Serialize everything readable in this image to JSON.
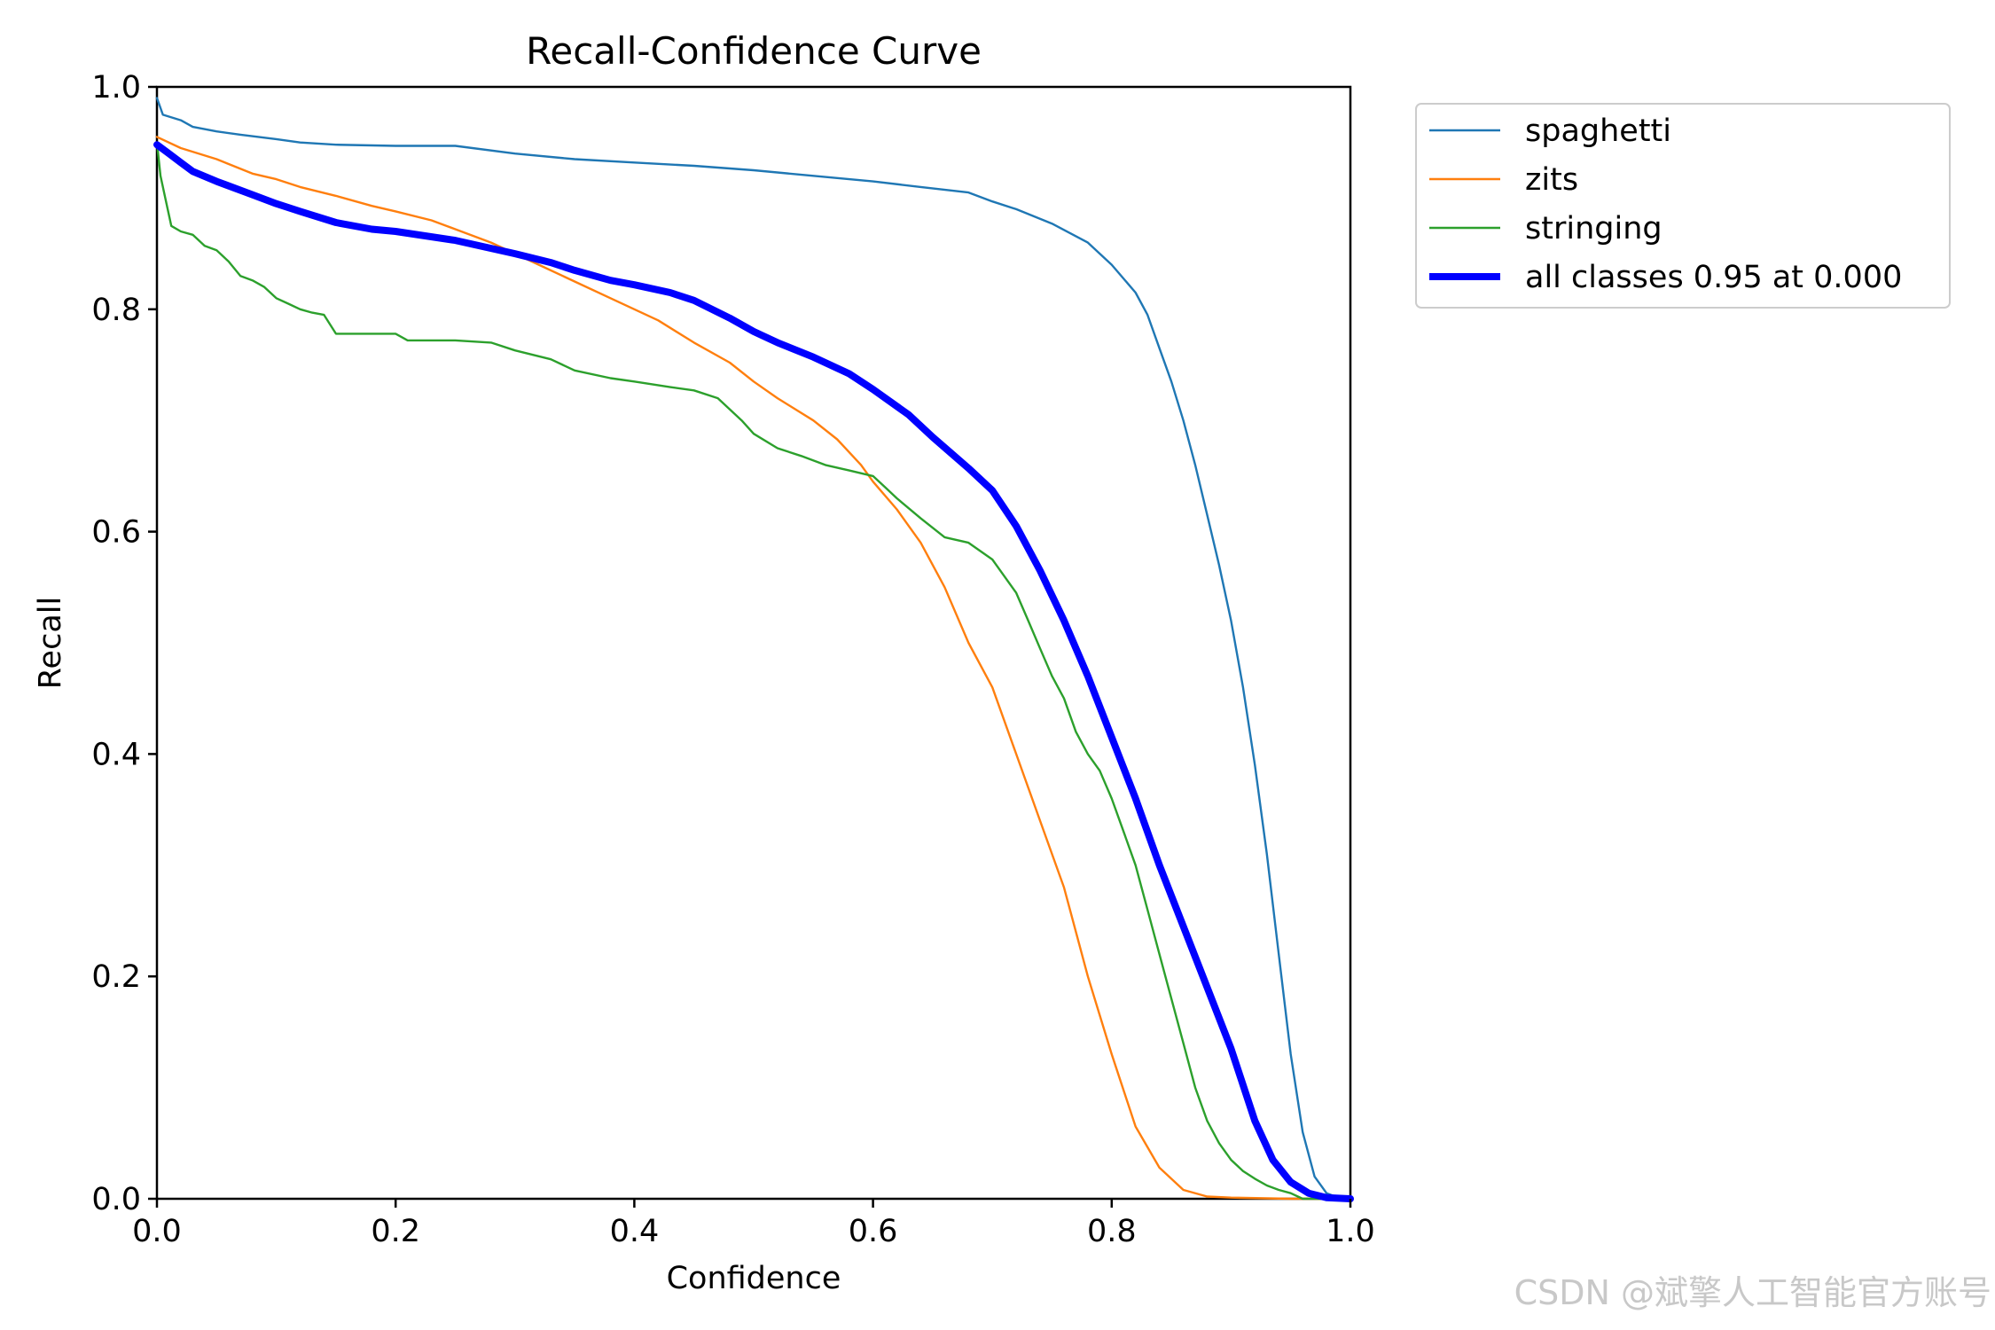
{
  "chart_data": {
    "type": "line",
    "title": "Recall-Confidence Curve",
    "xlabel": "Confidence",
    "ylabel": "Recall",
    "xlim": [
      0,
      1
    ],
    "ylim": [
      0,
      1
    ],
    "xticks": [
      "0.0",
      "0.2",
      "0.4",
      "0.6",
      "0.8",
      "1.0"
    ],
    "yticks": [
      "0.0",
      "0.2",
      "0.4",
      "0.6",
      "0.8",
      "1.0"
    ],
    "grid": false,
    "legend_position": "outside-top-right",
    "series": [
      {
        "name": "spaghetti",
        "color": "#1f77b4",
        "linewidth": "thin",
        "points": [
          [
            0,
            0.99
          ],
          [
            0.005,
            0.975
          ],
          [
            0.02,
            0.97
          ],
          [
            0.03,
            0.964
          ],
          [
            0.05,
            0.96
          ],
          [
            0.07,
            0.957
          ],
          [
            0.1,
            0.953
          ],
          [
            0.12,
            0.95
          ],
          [
            0.15,
            0.948
          ],
          [
            0.2,
            0.947
          ],
          [
            0.25,
            0.947
          ],
          [
            0.3,
            0.94
          ],
          [
            0.35,
            0.935
          ],
          [
            0.4,
            0.932
          ],
          [
            0.45,
            0.929
          ],
          [
            0.5,
            0.925
          ],
          [
            0.55,
            0.92
          ],
          [
            0.6,
            0.915
          ],
          [
            0.64,
            0.91
          ],
          [
            0.68,
            0.905
          ],
          [
            0.7,
            0.897
          ],
          [
            0.72,
            0.89
          ],
          [
            0.75,
            0.877
          ],
          [
            0.78,
            0.86
          ],
          [
            0.8,
            0.84
          ],
          [
            0.82,
            0.815
          ],
          [
            0.83,
            0.795
          ],
          [
            0.84,
            0.765
          ],
          [
            0.85,
            0.735
          ],
          [
            0.86,
            0.7
          ],
          [
            0.87,
            0.66
          ],
          [
            0.88,
            0.615
          ],
          [
            0.89,
            0.57
          ],
          [
            0.9,
            0.52
          ],
          [
            0.91,
            0.46
          ],
          [
            0.92,
            0.39
          ],
          [
            0.93,
            0.31
          ],
          [
            0.94,
            0.22
          ],
          [
            0.95,
            0.13
          ],
          [
            0.96,
            0.06
          ],
          [
            0.97,
            0.02
          ],
          [
            0.98,
            0.005
          ],
          [
            0.99,
            0.001
          ],
          [
            1.0,
            0.0
          ]
        ]
      },
      {
        "name": "zits",
        "color": "#ff7f0e",
        "linewidth": "thin",
        "points": [
          [
            0,
            0.955
          ],
          [
            0.02,
            0.945
          ],
          [
            0.05,
            0.935
          ],
          [
            0.08,
            0.922
          ],
          [
            0.1,
            0.917
          ],
          [
            0.12,
            0.91
          ],
          [
            0.15,
            0.902
          ],
          [
            0.18,
            0.893
          ],
          [
            0.2,
            0.888
          ],
          [
            0.23,
            0.88
          ],
          [
            0.25,
            0.872
          ],
          [
            0.28,
            0.86
          ],
          [
            0.3,
            0.85
          ],
          [
            0.32,
            0.84
          ],
          [
            0.35,
            0.825
          ],
          [
            0.38,
            0.81
          ],
          [
            0.4,
            0.8
          ],
          [
            0.42,
            0.79
          ],
          [
            0.45,
            0.77
          ],
          [
            0.48,
            0.752
          ],
          [
            0.5,
            0.735
          ],
          [
            0.52,
            0.72
          ],
          [
            0.55,
            0.7
          ],
          [
            0.57,
            0.683
          ],
          [
            0.59,
            0.66
          ],
          [
            0.6,
            0.645
          ],
          [
            0.62,
            0.62
          ],
          [
            0.64,
            0.59
          ],
          [
            0.66,
            0.55
          ],
          [
            0.68,
            0.5
          ],
          [
            0.7,
            0.46
          ],
          [
            0.72,
            0.4
          ],
          [
            0.74,
            0.34
          ],
          [
            0.76,
            0.28
          ],
          [
            0.78,
            0.2
          ],
          [
            0.8,
            0.13
          ],
          [
            0.82,
            0.065
          ],
          [
            0.84,
            0.028
          ],
          [
            0.86,
            0.008
          ],
          [
            0.88,
            0.002
          ],
          [
            0.9,
            0.001
          ],
          [
            0.95,
            0.0
          ],
          [
            1.0,
            0.0
          ]
        ]
      },
      {
        "name": "stringing",
        "color": "#2ca02c",
        "linewidth": "thin",
        "points": [
          [
            0,
            0.95
          ],
          [
            0.003,
            0.92
          ],
          [
            0.007,
            0.9
          ],
          [
            0.012,
            0.875
          ],
          [
            0.02,
            0.87
          ],
          [
            0.03,
            0.867
          ],
          [
            0.04,
            0.857
          ],
          [
            0.05,
            0.853
          ],
          [
            0.06,
            0.843
          ],
          [
            0.07,
            0.83
          ],
          [
            0.08,
            0.826
          ],
          [
            0.09,
            0.82
          ],
          [
            0.1,
            0.81
          ],
          [
            0.11,
            0.805
          ],
          [
            0.12,
            0.8
          ],
          [
            0.13,
            0.797
          ],
          [
            0.14,
            0.795
          ],
          [
            0.15,
            0.778
          ],
          [
            0.2,
            0.778
          ],
          [
            0.21,
            0.772
          ],
          [
            0.25,
            0.772
          ],
          [
            0.28,
            0.77
          ],
          [
            0.3,
            0.763
          ],
          [
            0.33,
            0.755
          ],
          [
            0.35,
            0.745
          ],
          [
            0.38,
            0.738
          ],
          [
            0.4,
            0.735
          ],
          [
            0.43,
            0.73
          ],
          [
            0.45,
            0.727
          ],
          [
            0.47,
            0.72
          ],
          [
            0.49,
            0.7
          ],
          [
            0.5,
            0.688
          ],
          [
            0.52,
            0.675
          ],
          [
            0.54,
            0.668
          ],
          [
            0.56,
            0.66
          ],
          [
            0.58,
            0.655
          ],
          [
            0.6,
            0.65
          ],
          [
            0.61,
            0.64
          ],
          [
            0.62,
            0.63
          ],
          [
            0.64,
            0.612
          ],
          [
            0.66,
            0.595
          ],
          [
            0.68,
            0.59
          ],
          [
            0.7,
            0.575
          ],
          [
            0.72,
            0.545
          ],
          [
            0.73,
            0.52
          ],
          [
            0.74,
            0.495
          ],
          [
            0.75,
            0.47
          ],
          [
            0.76,
            0.45
          ],
          [
            0.77,
            0.42
          ],
          [
            0.78,
            0.4
          ],
          [
            0.79,
            0.385
          ],
          [
            0.8,
            0.36
          ],
          [
            0.81,
            0.33
          ],
          [
            0.82,
            0.3
          ],
          [
            0.83,
            0.26
          ],
          [
            0.84,
            0.22
          ],
          [
            0.85,
            0.18
          ],
          [
            0.86,
            0.14
          ],
          [
            0.87,
            0.1
          ],
          [
            0.88,
            0.07
          ],
          [
            0.89,
            0.05
          ],
          [
            0.9,
            0.035
          ],
          [
            0.91,
            0.025
          ],
          [
            0.92,
            0.018
          ],
          [
            0.93,
            0.012
          ],
          [
            0.94,
            0.008
          ],
          [
            0.95,
            0.005
          ],
          [
            0.96,
            0.0
          ],
          [
            1.0,
            0.0
          ]
        ]
      },
      {
        "name": "all classes 0.95 at 0.000",
        "color": "#0000ff",
        "linewidth": "thick",
        "points": [
          [
            0,
            0.948
          ],
          [
            0.01,
            0.94
          ],
          [
            0.02,
            0.932
          ],
          [
            0.03,
            0.924
          ],
          [
            0.05,
            0.915
          ],
          [
            0.08,
            0.903
          ],
          [
            0.1,
            0.895
          ],
          [
            0.12,
            0.888
          ],
          [
            0.15,
            0.878
          ],
          [
            0.18,
            0.872
          ],
          [
            0.2,
            0.87
          ],
          [
            0.25,
            0.862
          ],
          [
            0.3,
            0.85
          ],
          [
            0.33,
            0.842
          ],
          [
            0.35,
            0.835
          ],
          [
            0.38,
            0.826
          ],
          [
            0.4,
            0.822
          ],
          [
            0.43,
            0.815
          ],
          [
            0.45,
            0.808
          ],
          [
            0.48,
            0.792
          ],
          [
            0.5,
            0.78
          ],
          [
            0.52,
            0.77
          ],
          [
            0.55,
            0.757
          ],
          [
            0.58,
            0.742
          ],
          [
            0.6,
            0.728
          ],
          [
            0.63,
            0.705
          ],
          [
            0.65,
            0.685
          ],
          [
            0.68,
            0.657
          ],
          [
            0.7,
            0.637
          ],
          [
            0.72,
            0.605
          ],
          [
            0.74,
            0.565
          ],
          [
            0.76,
            0.52
          ],
          [
            0.78,
            0.47
          ],
          [
            0.8,
            0.415
          ],
          [
            0.82,
            0.36
          ],
          [
            0.84,
            0.3
          ],
          [
            0.86,
            0.245
          ],
          [
            0.88,
            0.19
          ],
          [
            0.9,
            0.135
          ],
          [
            0.92,
            0.07
          ],
          [
            0.935,
            0.035
          ],
          [
            0.95,
            0.015
          ],
          [
            0.965,
            0.005
          ],
          [
            0.98,
            0.001
          ],
          [
            1.0,
            0.0
          ]
        ]
      }
    ]
  },
  "watermark": "CSDN @斌擎人工智能官方账号"
}
